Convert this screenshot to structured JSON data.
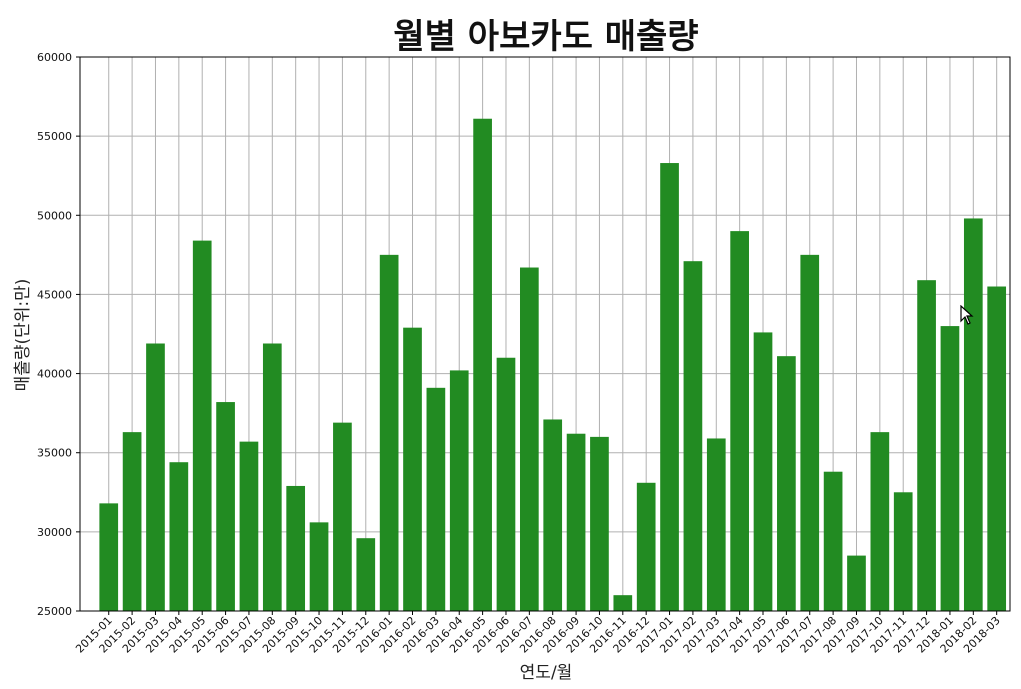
{
  "chart_data": {
    "type": "bar",
    "title": "월별 아보카도 매출량",
    "xlabel": "연도/월",
    "ylabel": "매출량(단위:만)",
    "ylim": [
      25000,
      60000
    ],
    "yticks": [
      25000,
      30000,
      35000,
      40000,
      45000,
      50000,
      55000,
      60000
    ],
    "grid": true,
    "bar_color": "#228b22",
    "categories": [
      "2015-01",
      "2015-02",
      "2015-03",
      "2015-04",
      "2015-05",
      "2015-06",
      "2015-07",
      "2015-08",
      "2015-09",
      "2015-10",
      "2015-11",
      "2015-12",
      "2016-01",
      "2016-02",
      "2016-03",
      "2016-04",
      "2016-05",
      "2016-06",
      "2016-07",
      "2016-08",
      "2016-09",
      "2016-10",
      "2016-11",
      "2016-12",
      "2017-01",
      "2017-02",
      "2017-03",
      "2017-04",
      "2017-05",
      "2017-06",
      "2017-07",
      "2017-08",
      "2017-09",
      "2017-10",
      "2017-11",
      "2017-12",
      "2018-01",
      "2018-02",
      "2018-03"
    ],
    "values": [
      31800,
      36300,
      41900,
      34400,
      48400,
      38200,
      35700,
      41900,
      32900,
      30600,
      36900,
      29600,
      47500,
      42900,
      39100,
      40200,
      56100,
      41000,
      46700,
      37100,
      36200,
      36000,
      26000,
      33100,
      53300,
      47100,
      35900,
      49000,
      42600,
      41100,
      47500,
      33800,
      28500,
      36300,
      32500,
      45900,
      43000,
      49800,
      45500
    ]
  },
  "cursor": {
    "icon": "mouse-pointer-icon"
  }
}
